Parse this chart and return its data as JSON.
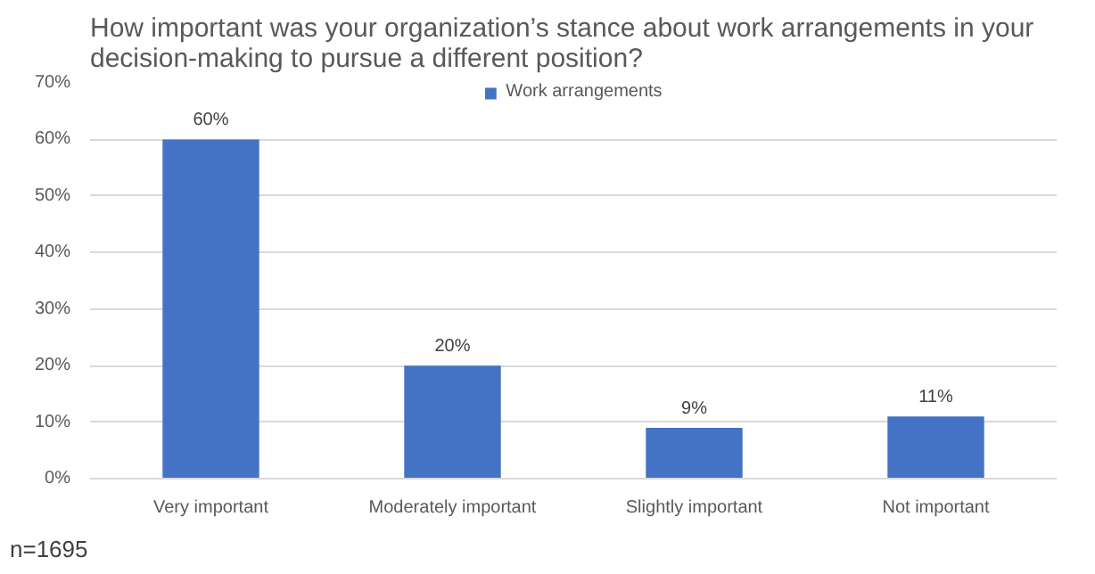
{
  "chart_data": {
    "type": "bar",
    "title": "How important was your organization’s stance about work arrangements in your decision-making to pursue a different position?",
    "categories": [
      "Very important",
      "Moderately important",
      "Slightly important",
      "Not important"
    ],
    "series": [
      {
        "name": "Work arrangements",
        "color": "#4472c4",
        "values": [
          60,
          20,
          9,
          11
        ],
        "value_labels": [
          "60%",
          "20%",
          "9%",
          "11%"
        ]
      }
    ],
    "ylim": [
      0,
      70
    ],
    "yticks": [
      {
        "value": 0,
        "label": "0%"
      },
      {
        "value": 10,
        "label": "10%"
      },
      {
        "value": 20,
        "label": "20%"
      },
      {
        "value": 30,
        "label": "30%"
      },
      {
        "value": 40,
        "label": "40%"
      },
      {
        "value": 50,
        "label": "50%"
      },
      {
        "value": 60,
        "label": "60%"
      },
      {
        "value": 70,
        "label": "70%"
      }
    ],
    "grid": "y",
    "legend": "top",
    "annotations": [
      "n=1695"
    ]
  }
}
